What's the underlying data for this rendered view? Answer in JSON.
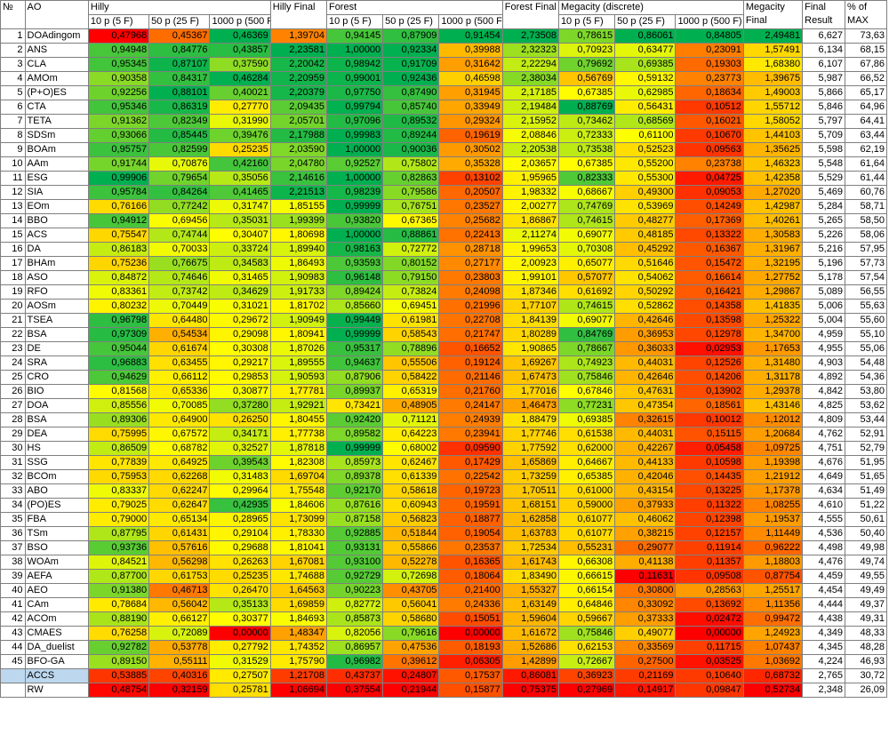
{
  "headers": {
    "no": "№",
    "ao": "AO",
    "hilly": "Hilly",
    "hilly_final": "Hilly Final",
    "forest": "Forest",
    "forest_final": "Forest Final",
    "megacity": "Megacity (discrete)",
    "megacity_final": "Megacity Final",
    "final_result": "Final Result",
    "pct_max": "% of MAX",
    "sub": [
      "10 p (5 F)",
      "50 p (25 F)",
      "1000 p (500 F)"
    ]
  },
  "rows": [
    {
      "n": "1",
      "ao": "DOAdingom",
      "v": [
        "0,47968",
        "0,45367",
        "0,46369",
        "1,39704",
        "0,94145",
        "0,87909",
        "0,91454",
        "2,73508",
        "0,78615",
        "0,86061",
        "0,84805",
        "2,49481",
        "6,627",
        "73,63"
      ]
    },
    {
      "n": "2",
      "ao": "ANS",
      "v": [
        "0,94948",
        "0,84776",
        "0,43857",
        "2,23581",
        "1,00000",
        "0,92334",
        "0,39988",
        "2,32323",
        "0,70923",
        "0,63477",
        "0,23091",
        "1,57491",
        "6,134",
        "68,15"
      ]
    },
    {
      "n": "3",
      "ao": "CLA",
      "v": [
        "0,95345",
        "0,87107",
        "0,37590",
        "2,20042",
        "0,98942",
        "0,91709",
        "0,31642",
        "2,22294",
        "0,79692",
        "0,69385",
        "0,19303",
        "1,68380",
        "6,107",
        "67,86"
      ]
    },
    {
      "n": "4",
      "ao": "AMOm",
      "v": [
        "0,90358",
        "0,84317",
        "0,46284",
        "2,20959",
        "0,99001",
        "0,92436",
        "0,46598",
        "2,38034",
        "0,56769",
        "0,59132",
        "0,23773",
        "1,39675",
        "5,987",
        "66,52"
      ]
    },
    {
      "n": "5",
      "ao": "(P+O)ES",
      "v": [
        "0,92256",
        "0,88101",
        "0,40021",
        "2,20379",
        "0,97750",
        "0,87490",
        "0,31945",
        "2,17185",
        "0,67385",
        "0,62985",
        "0,18634",
        "1,49003",
        "5,866",
        "65,17"
      ]
    },
    {
      "n": "6",
      "ao": "CTA",
      "v": [
        "0,95346",
        "0,86319",
        "0,27770",
        "2,09435",
        "0,99794",
        "0,85740",
        "0,33949",
        "2,19484",
        "0,88769",
        "0,56431",
        "0,10512",
        "1,55712",
        "5,846",
        "64,96"
      ]
    },
    {
      "n": "7",
      "ao": "TETA",
      "v": [
        "0,91362",
        "0,82349",
        "0,31990",
        "2,05701",
        "0,97096",
        "0,89532",
        "0,29324",
        "2,15952",
        "0,73462",
        "0,68569",
        "0,16021",
        "1,58052",
        "5,797",
        "64,41"
      ]
    },
    {
      "n": "8",
      "ao": "SDSm",
      "v": [
        "0,93066",
        "0,85445",
        "0,39476",
        "2,17988",
        "0,99983",
        "0,89244",
        "0,19619",
        "2,08846",
        "0,72333",
        "0,61100",
        "0,10670",
        "1,44103",
        "5,709",
        "63,44"
      ]
    },
    {
      "n": "9",
      "ao": "BOAm",
      "v": [
        "0,95757",
        "0,82599",
        "0,25235",
        "2,03590",
        "1,00000",
        "0,90036",
        "0,30502",
        "2,20538",
        "0,73538",
        "0,52523",
        "0,09563",
        "1,35625",
        "5,598",
        "62,19"
      ]
    },
    {
      "n": "10",
      "ao": "AAm",
      "v": [
        "0,91744",
        "0,70876",
        "0,42160",
        "2,04780",
        "0,92527",
        "0,75802",
        "0,35328",
        "2,03657",
        "0,67385",
        "0,55200",
        "0,23738",
        "1,46323",
        "5,548",
        "61,64"
      ]
    },
    {
      "n": "11",
      "ao": "ESG",
      "v": [
        "0,99906",
        "0,79654",
        "0,35056",
        "2,14616",
        "1,00000",
        "0,82863",
        "0,13102",
        "1,95965",
        "0,82333",
        "0,55300",
        "0,04725",
        "1,42358",
        "5,529",
        "61,44"
      ]
    },
    {
      "n": "12",
      "ao": "SIA",
      "v": [
        "0,95784",
        "0,84264",
        "0,41465",
        "2,21513",
        "0,98239",
        "0,79586",
        "0,20507",
        "1,98332",
        "0,68667",
        "0,49300",
        "0,09053",
        "1,27020",
        "5,469",
        "60,76"
      ]
    },
    {
      "n": "13",
      "ao": "EOm",
      "v": [
        "0,76166",
        "0,77242",
        "0,31747",
        "1,85155",
        "0,99999",
        "0,76751",
        "0,23527",
        "2,00277",
        "0,74769",
        "0,53969",
        "0,14249",
        "1,42987",
        "5,284",
        "58,71"
      ]
    },
    {
      "n": "14",
      "ao": "BBO",
      "v": [
        "0,94912",
        "0,69456",
        "0,35031",
        "1,99399",
        "0,93820",
        "0,67365",
        "0,25682",
        "1,86867",
        "0,74615",
        "0,48277",
        "0,17369",
        "1,40261",
        "5,265",
        "58,50"
      ]
    },
    {
      "n": "15",
      "ao": "ACS",
      "v": [
        "0,75547",
        "0,74744",
        "0,30407",
        "1,80698",
        "1,00000",
        "0,88861",
        "0,22413",
        "2,11274",
        "0,69077",
        "0,48185",
        "0,13322",
        "1,30583",
        "5,226",
        "58,06"
      ]
    },
    {
      "n": "16",
      "ao": "DA",
      "v": [
        "0,86183",
        "0,70033",
        "0,33724",
        "1,89940",
        "0,98163",
        "0,72772",
        "0,28718",
        "1,99653",
        "0,70308",
        "0,45292",
        "0,16367",
        "1,31967",
        "5,216",
        "57,95"
      ]
    },
    {
      "n": "17",
      "ao": "BHAm",
      "v": [
        "0,75236",
        "0,76675",
        "0,34583",
        "1,86493",
        "0,93593",
        "0,80152",
        "0,27177",
        "2,00923",
        "0,65077",
        "0,51646",
        "0,15472",
        "1,32195",
        "5,196",
        "57,73"
      ]
    },
    {
      "n": "18",
      "ao": "ASO",
      "v": [
        "0,84872",
        "0,74646",
        "0,31465",
        "1,90983",
        "0,96148",
        "0,79150",
        "0,23803",
        "1,99101",
        "0,57077",
        "0,54062",
        "0,16614",
        "1,27752",
        "5,178",
        "57,54"
      ]
    },
    {
      "n": "19",
      "ao": "RFO",
      "v": [
        "0,83361",
        "0,73742",
        "0,34629",
        "1,91733",
        "0,89424",
        "0,73824",
        "0,24098",
        "1,87346",
        "0,61692",
        "0,50292",
        "0,16421",
        "1,29867",
        "5,089",
        "56,55"
      ]
    },
    {
      "n": "20",
      "ao": "AOSm",
      "v": [
        "0,80232",
        "0,70449",
        "0,31021",
        "1,81702",
        "0,85660",
        "0,69451",
        "0,21996",
        "1,77107",
        "0,74615",
        "0,52862",
        "0,14358",
        "1,41835",
        "5,006",
        "55,63"
      ]
    },
    {
      "n": "21",
      "ao": "TSEA",
      "v": [
        "0,96798",
        "0,64480",
        "0,29672",
        "1,90949",
        "0,99449",
        "0,61981",
        "0,22708",
        "1,84139",
        "0,69077",
        "0,42646",
        "0,13598",
        "1,25322",
        "5,004",
        "55,60"
      ]
    },
    {
      "n": "22",
      "ao": "BSA",
      "v": [
        "0,97309",
        "0,54534",
        "0,29098",
        "1,80941",
        "0,99999",
        "0,58543",
        "0,21747",
        "1,80289",
        "0,84769",
        "0,36953",
        "0,12978",
        "1,34700",
        "4,959",
        "55,10"
      ]
    },
    {
      "n": "23",
      "ao": "DE",
      "v": [
        "0,95044",
        "0,61674",
        "0,30308",
        "1,87026",
        "0,95317",
        "0,78896",
        "0,16652",
        "1,90865",
        "0,78667",
        "0,36033",
        "0,02953",
        "1,17653",
        "4,955",
        "55,06"
      ]
    },
    {
      "n": "24",
      "ao": "SRA",
      "v": [
        "0,96883",
        "0,63455",
        "0,29217",
        "1,89555",
        "0,94637",
        "0,55506",
        "0,19124",
        "1,69267",
        "0,74923",
        "0,44031",
        "0,12526",
        "1,31480",
        "4,903",
        "54,48"
      ]
    },
    {
      "n": "25",
      "ao": "CRO",
      "v": [
        "0,94629",
        "0,66112",
        "0,29853",
        "1,90593",
        "0,87906",
        "0,58422",
        "0,21146",
        "1,67473",
        "0,75846",
        "0,42646",
        "0,14206",
        "1,31178",
        "4,892",
        "54,36"
      ]
    },
    {
      "n": "26",
      "ao": "BIO",
      "v": [
        "0,81568",
        "0,65336",
        "0,30877",
        "1,77781",
        "0,89937",
        "0,65319",
        "0,21760",
        "1,77016",
        "0,67846",
        "0,47631",
        "0,13902",
        "1,29378",
        "4,842",
        "53,80"
      ]
    },
    {
      "n": "27",
      "ao": "DOA",
      "v": [
        "0,85556",
        "0,70085",
        "0,37280",
        "1,92921",
        "0,73421",
        "0,48905",
        "0,24147",
        "1,46473",
        "0,77231",
        "0,47354",
        "0,18561",
        "1,43146",
        "4,825",
        "53,62"
      ]
    },
    {
      "n": "28",
      "ao": "BSA",
      "v": [
        "0,89306",
        "0,64900",
        "0,26250",
        "1,80455",
        "0,92420",
        "0,71121",
        "0,24939",
        "1,88479",
        "0,69385",
        "0,32615",
        "0,10012",
        "1,12012",
        "4,809",
        "53,44"
      ]
    },
    {
      "n": "29",
      "ao": "DEA",
      "v": [
        "0,75995",
        "0,67572",
        "0,34171",
        "1,77738",
        "0,89582",
        "0,64223",
        "0,23941",
        "1,77746",
        "0,61538",
        "0,44031",
        "0,15115",
        "1,20684",
        "4,762",
        "52,91"
      ]
    },
    {
      "n": "30",
      "ao": "HS",
      "v": [
        "0,86509",
        "0,68782",
        "0,32527",
        "1,87818",
        "0,99999",
        "0,68002",
        "0,09590",
        "1,77592",
        "0,62000",
        "0,42267",
        "0,05458",
        "1,09725",
        "4,751",
        "52,79"
      ]
    },
    {
      "n": "31",
      "ao": "SSG",
      "v": [
        "0,77839",
        "0,64925",
        "0,39543",
        "1,82308",
        "0,85973",
        "0,62467",
        "0,17429",
        "1,65869",
        "0,64667",
        "0,44133",
        "0,10598",
        "1,19398",
        "4,676",
        "51,95"
      ]
    },
    {
      "n": "32",
      "ao": "BCOm",
      "v": [
        "0,75953",
        "0,62268",
        "0,31483",
        "1,69704",
        "0,89378",
        "0,61339",
        "0,22542",
        "1,73259",
        "0,65385",
        "0,42046",
        "0,14435",
        "1,21912",
        "4,649",
        "51,65"
      ]
    },
    {
      "n": "33",
      "ao": "ABO",
      "v": [
        "0,83337",
        "0,62247",
        "0,29964",
        "1,75548",
        "0,92170",
        "0,58618",
        "0,19723",
        "1,70511",
        "0,61000",
        "0,43154",
        "0,13225",
        "1,17378",
        "4,634",
        "51,49"
      ]
    },
    {
      "n": "34",
      "ao": "(PO)ES",
      "v": [
        "0,79025",
        "0,62647",
        "0,42935",
        "1,84606",
        "0,87616",
        "0,60943",
        "0,19591",
        "1,68151",
        "0,59000",
        "0,37933",
        "0,11322",
        "1,08255",
        "4,610",
        "51,22"
      ]
    },
    {
      "n": "35",
      "ao": "FBA",
      "v": [
        "0,79000",
        "0,65134",
        "0,28965",
        "1,73099",
        "0,87158",
        "0,56823",
        "0,18877",
        "1,62858",
        "0,61077",
        "0,46062",
        "0,12398",
        "1,19537",
        "4,555",
        "50,61"
      ]
    },
    {
      "n": "36",
      "ao": "TSm",
      "v": [
        "0,87795",
        "0,61431",
        "0,29104",
        "1,78330",
        "0,92885",
        "0,51844",
        "0,19054",
        "1,63783",
        "0,61077",
        "0,38215",
        "0,12157",
        "1,11449",
        "4,536",
        "50,40"
      ]
    },
    {
      "n": "37",
      "ao": "BSO",
      "v": [
        "0,93736",
        "0,57616",
        "0,29688",
        "1,81041",
        "0,93131",
        "0,55866",
        "0,23537",
        "1,72534",
        "0,55231",
        "0,29077",
        "0,11914",
        "0,96222",
        "4,498",
        "49,98"
      ]
    },
    {
      "n": "38",
      "ao": "WOAm",
      "v": [
        "0,84521",
        "0,56298",
        "0,26263",
        "1,67081",
        "0,93100",
        "0,52278",
        "0,16365",
        "1,61743",
        "0,66308",
        "0,41138",
        "0,11357",
        "1,18803",
        "4,476",
        "49,74"
      ]
    },
    {
      "n": "39",
      "ao": "AEFA",
      "v": [
        "0,87700",
        "0,61753",
        "0,25235",
        "1,74688",
        "0,92729",
        "0,72698",
        "0,18064",
        "1,83490",
        "0,66615",
        "0,11631",
        "0,09508",
        "0,87754",
        "4,459",
        "49,55"
      ]
    },
    {
      "n": "40",
      "ao": "AEO",
      "v": [
        "0,91380",
        "0,46713",
        "0,26470",
        "1,64563",
        "0,90223",
        "0,43705",
        "0,21400",
        "1,55327",
        "0,66154",
        "0,30800",
        "0,28563",
        "1,25517",
        "4,454",
        "49,49"
      ]
    },
    {
      "n": "41",
      "ao": "CAm",
      "v": [
        "0,78684",
        "0,56042",
        "0,35133",
        "1,69859",
        "0,82772",
        "0,56041",
        "0,24336",
        "1,63149",
        "0,64846",
        "0,33092",
        "0,13692",
        "1,11356",
        "4,444",
        "49,37"
      ]
    },
    {
      "n": "42",
      "ao": "ACOm",
      "v": [
        "0,88190",
        "0,66127",
        "0,30377",
        "1,84693",
        "0,85873",
        "0,58680",
        "0,15051",
        "1,59604",
        "0,59667",
        "0,37333",
        "0,02472",
        "0,99472",
        "4,438",
        "49,31"
      ]
    },
    {
      "n": "43",
      "ao": "CMAES",
      "v": [
        "0,76258",
        "0,72089",
        "0,00000",
        "1,48347",
        "0,82056",
        "0,79616",
        "0,00000",
        "1,61672",
        "0,75846",
        "0,49077",
        "0,00000",
        "1,24923",
        "4,349",
        "48,33"
      ]
    },
    {
      "n": "44",
      "ao": "DA_duelist",
      "v": [
        "0,92782",
        "0,53778",
        "0,27792",
        "1,74352",
        "0,86957",
        "0,47536",
        "0,18193",
        "1,52686",
        "0,62153",
        "0,33569",
        "0,11715",
        "1,07437",
        "4,345",
        "48,28"
      ]
    },
    {
      "n": "45",
      "ao": "BFO-GA",
      "v": [
        "0,89150",
        "0,55111",
        "0,31529",
        "1,75790",
        "0,96982",
        "0,39612",
        "0,06305",
        "1,42899",
        "0,72667",
        "0,27500",
        "0,03525",
        "1,03692",
        "4,224",
        "46,93"
      ]
    },
    {
      "n": "",
      "ao": "ACCS",
      "highlight": true,
      "v": [
        "0,53885",
        "0,40316",
        "0,27507",
        "1,21708",
        "0,43737",
        "0,24807",
        "0,17537",
        "0,86081",
        "0,36923",
        "0,21169",
        "0,10640",
        "0,68732",
        "2,765",
        "30,72"
      ]
    },
    {
      "n": "",
      "ao": "RW",
      "v": [
        "0,48754",
        "0,32159",
        "0,25781",
        "1,06694",
        "0,37554",
        "0,21944",
        "0,15877",
        "0,75375",
        "0,27969",
        "0,14917",
        "0,09847",
        "0,52734",
        "2,348",
        "26,09"
      ]
    }
  ],
  "colors": {
    "red": "#ff0000",
    "orange": "#ff9900",
    "yellow": "#ffff00",
    "green": "#00b050",
    "highlight": "#bcd7ee"
  }
}
